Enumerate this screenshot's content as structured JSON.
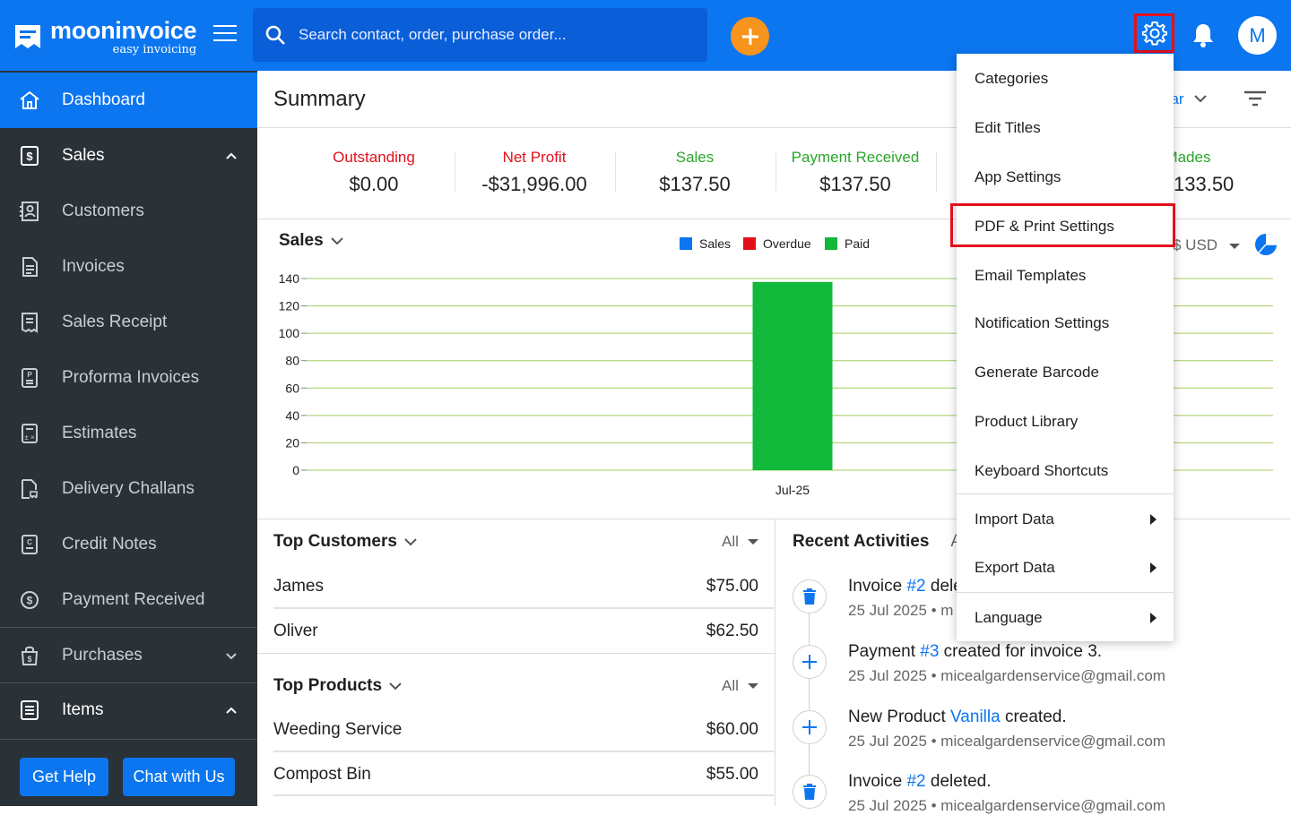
{
  "header": {
    "logo_name": "mooninvoice",
    "logo_tagline": "easy invoicing",
    "search_placeholder": "Search contact, order, purchase order...",
    "avatar_initial": "M"
  },
  "sidebar": {
    "dashboard": "Dashboard",
    "sales_group": "Sales",
    "sales_items": [
      "Customers",
      "Invoices",
      "Sales Receipt",
      "Proforma Invoices",
      "Estimates",
      "Delivery Challans",
      "Credit Notes",
      "Payment Received"
    ],
    "purchases_group": "Purchases",
    "items_group": "Items",
    "get_help": "Get Help",
    "chat": "Chat with Us"
  },
  "summary": {
    "title": "Summary",
    "year_fragment": "ear",
    "stats": [
      {
        "label": "Outstanding",
        "value": "$0.00",
        "color": "#e3101c"
      },
      {
        "label": "Net Profit",
        "value": "-$31,996.00",
        "color": "#e3101c"
      },
      {
        "label": "Sales",
        "value": "$137.50",
        "color": "#2aa52a"
      },
      {
        "label": "Payment Received",
        "value": "$137.50",
        "color": "#2aa52a"
      },
      {
        "label": "t Mades",
        "value": "133.50",
        "color": "#2aa52a"
      }
    ]
  },
  "sales_chart": {
    "title": "Sales",
    "currency": "$ USD",
    "legend": [
      {
        "name": "Sales",
        "color": "#0b76f0"
      },
      {
        "name": "Overdue",
        "color": "#e3101c"
      },
      {
        "name": "Paid",
        "color": "#12b83a"
      }
    ]
  },
  "chart_data": {
    "type": "bar",
    "categories": [
      "Jul-25"
    ],
    "series": [
      {
        "name": "Sales",
        "values": [
          0
        ]
      },
      {
        "name": "Overdue",
        "values": [
          0
        ]
      },
      {
        "name": "Paid",
        "values": [
          137.5
        ]
      }
    ],
    "yticks": [
      0,
      20,
      40,
      60,
      80,
      100,
      120,
      140
    ],
    "ylim": [
      0,
      140
    ],
    "grid": true,
    "legend_position": "top"
  },
  "top_customers": {
    "title": "Top Customers",
    "filter": "All",
    "rows": [
      {
        "name": "James",
        "amount": "$75.00"
      },
      {
        "name": "Oliver",
        "amount": "$62.50"
      }
    ]
  },
  "top_products": {
    "title": "Top Products",
    "filter": "All",
    "rows": [
      {
        "name": "Weeding Service",
        "amount": "$60.00"
      },
      {
        "name": "Compost Bin",
        "amount": "$55.00"
      }
    ]
  },
  "recent": {
    "title": "Recent Activities",
    "title_cut": "A",
    "items": [
      {
        "pre": "Invoice ",
        "link": "#2",
        "post": " dele",
        "sub": "25 Jul 2025 • m"
      },
      {
        "pre": "Payment ",
        "link": "#3",
        "post": " created for invoice 3.",
        "sub": "25 Jul 2025 • micealgardenservice@gmail.com"
      },
      {
        "pre": "New Product ",
        "link": "Vanilla",
        "post": " created.",
        "sub": "25 Jul 2025 • micealgardenservice@gmail.com"
      },
      {
        "pre": "Invoice ",
        "link": "#2",
        "post": " deleted.",
        "sub": "25 Jul 2025 • micealgardenservice@gmail.com"
      }
    ]
  },
  "settings_menu": {
    "items": [
      "Categories",
      "Edit Titles",
      "App Settings",
      "PDF & Print Settings",
      "Email Templates",
      "Notification Settings",
      "Generate Barcode",
      "Product Library",
      "Keyboard Shortcuts",
      "Import Data",
      "Export Data",
      "Language"
    ]
  }
}
